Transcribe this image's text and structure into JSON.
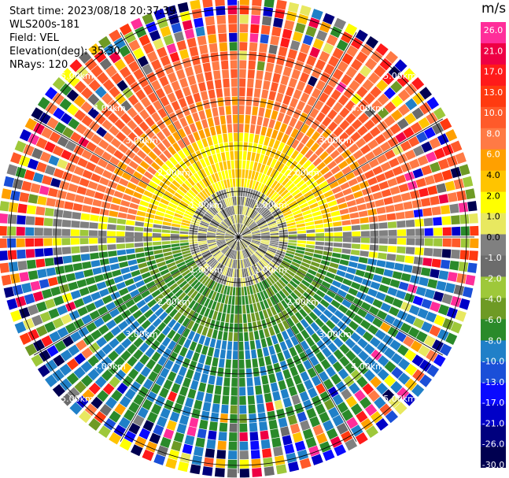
{
  "header": {
    "start_time": "Start time: 2023/08/18 20:37:39",
    "site": "WLS200s-181",
    "field": "Field: VEL",
    "elevation": "Elevation(deg): 35.30",
    "nrays": "NRays: 120"
  },
  "colorbar": {
    "unit": "m/s",
    "ticks": [
      "26.0",
      "21.0",
      "17.0",
      "13.0",
      "10.0",
      "8.0",
      "6.0",
      "4.0",
      "2.0",
      "1.0",
      "0.0",
      "-1.0",
      "-2.0",
      "-4.0",
      "-6.0",
      "-8.0",
      "-10.0",
      "-13.0",
      "-17.0",
      "-21.0",
      "-26.0",
      "-30.0"
    ],
    "colors": [
      "#ff2e9a",
      "#ee0044",
      "#ff1a1a",
      "#ff3a10",
      "#ff5a2a",
      "#ff7a45",
      "#ffa000",
      "#ffc400",
      "#ffff00",
      "#e8e860",
      "#808080",
      "#6c6c6c",
      "#9ec83a",
      "#6e9a25",
      "#2a8a2a",
      "#2080c8",
      "#1a4fd8",
      "#0a0aff",
      "#0000c8",
      "#00007e",
      "#000050"
    ]
  },
  "range_ring_labels": [
    "1.00km",
    "2.00km",
    "3.00km",
    "4.00km",
    "5.00km"
  ]
}
